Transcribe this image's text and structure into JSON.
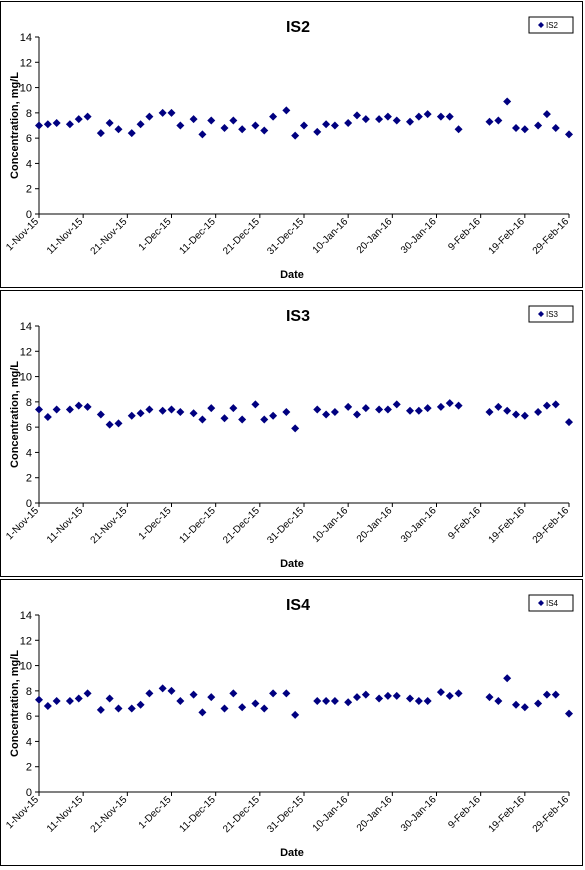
{
  "charts": [
    {
      "title": "IS2",
      "legend_label": "IS2",
      "ylabel": "Concentration, mg/L",
      "xlabel": "Date",
      "y_ticks": [
        "0",
        "2",
        "4",
        "6",
        "8",
        "10",
        "12",
        "14"
      ],
      "x_ticks": [
        "1-Nov-15",
        "11-Nov-15",
        "21-Nov-15",
        "1-Dec-15",
        "11-Dec-15",
        "21-Dec-15",
        "31-Dec-15",
        "10-Jan-16",
        "20-Jan-16",
        "30-Jan-16",
        "9-Feb-16",
        "19-Feb-16",
        "29-Feb-16"
      ]
    },
    {
      "title": "IS3",
      "legend_label": "IS3",
      "ylabel": "Concentration, mg/L",
      "xlabel": "Date",
      "y_ticks": [
        "0",
        "2",
        "4",
        "6",
        "8",
        "10",
        "12",
        "14"
      ],
      "x_ticks": [
        "1-Nov-15",
        "11-Nov-15",
        "21-Nov-15",
        "1-Dec-15",
        "11-Dec-15",
        "21-Dec-15",
        "31-Dec-15",
        "10-Jan-16",
        "20-Jan-16",
        "30-Jan-16",
        "9-Feb-16",
        "19-Feb-16",
        "29-Feb-16"
      ]
    },
    {
      "title": "IS4",
      "legend_label": "IS4",
      "ylabel": "Concentration, mg/L",
      "xlabel": "Date",
      "y_ticks": [
        "0",
        "2",
        "4",
        "6",
        "8",
        "10",
        "12",
        "14"
      ],
      "x_ticks": [
        "1-Nov-15",
        "11-Nov-15",
        "21-Nov-15",
        "1-Dec-15",
        "11-Dec-15",
        "21-Dec-15",
        "31-Dec-15",
        "10-Jan-16",
        "20-Jan-16",
        "30-Jan-16",
        "9-Feb-16",
        "19-Feb-16",
        "29-Feb-16"
      ]
    }
  ],
  "chart_data": [
    {
      "type": "scatter",
      "title": "IS2",
      "xlabel": "Date",
      "ylabel": "Concentration, mg/L",
      "x_type": "date",
      "xlim": [
        "2015-11-01",
        "2016-02-29"
      ],
      "ylim": [
        0,
        14
      ],
      "y_tick_step": 2,
      "grid": false,
      "legend": "top-right",
      "marker": "diamond",
      "color": "#000080",
      "series": [
        {
          "name": "IS2",
          "x": [
            "2015-11-01",
            "2015-11-03",
            "2015-11-05",
            "2015-11-08",
            "2015-11-10",
            "2015-11-12",
            "2015-11-15",
            "2015-11-17",
            "2015-11-19",
            "2015-11-22",
            "2015-11-24",
            "2015-11-26",
            "2015-11-29",
            "2015-12-01",
            "2015-12-03",
            "2015-12-06",
            "2015-12-08",
            "2015-12-10",
            "2015-12-13",
            "2015-12-15",
            "2015-12-17",
            "2015-12-20",
            "2015-12-22",
            "2015-12-24",
            "2015-12-27",
            "2015-12-29",
            "2015-12-31",
            "2016-01-03",
            "2016-01-05",
            "2016-01-07",
            "2016-01-10",
            "2016-01-12",
            "2016-01-14",
            "2016-01-17",
            "2016-01-19",
            "2016-01-21",
            "2016-01-24",
            "2016-01-26",
            "2016-01-28",
            "2016-01-31",
            "2016-02-02",
            "2016-02-04",
            "2016-02-11",
            "2016-02-13",
            "2016-02-15",
            "2016-02-17",
            "2016-02-19",
            "2016-02-22",
            "2016-02-24",
            "2016-02-26",
            "2016-02-29"
          ],
          "y": [
            7.0,
            7.1,
            7.2,
            7.1,
            7.5,
            7.7,
            6.4,
            7.2,
            6.7,
            6.4,
            7.1,
            7.7,
            8.0,
            8.0,
            7.0,
            7.5,
            6.3,
            7.4,
            6.8,
            7.4,
            6.7,
            7.0,
            6.6,
            7.7,
            8.2,
            6.2,
            7.0,
            6.5,
            7.1,
            7.0,
            7.2,
            7.8,
            7.5,
            7.5,
            7.7,
            7.4,
            7.3,
            7.7,
            7.9,
            7.7,
            7.7,
            6.7,
            7.3,
            7.4,
            8.9,
            6.8,
            6.7,
            7.0,
            7.9,
            6.8,
            6.3
          ]
        }
      ]
    },
    {
      "type": "scatter",
      "title": "IS3",
      "xlabel": "Date",
      "ylabel": "Concentration, mg/L",
      "x_type": "date",
      "xlim": [
        "2015-11-01",
        "2016-02-29"
      ],
      "ylim": [
        0,
        14
      ],
      "y_tick_step": 2,
      "grid": false,
      "legend": "top-right",
      "marker": "diamond",
      "color": "#000080",
      "series": [
        {
          "name": "IS3",
          "x": [
            "2015-11-01",
            "2015-11-03",
            "2015-11-05",
            "2015-11-08",
            "2015-11-10",
            "2015-11-12",
            "2015-11-15",
            "2015-11-17",
            "2015-11-19",
            "2015-11-22",
            "2015-11-24",
            "2015-11-26",
            "2015-11-29",
            "2015-12-01",
            "2015-12-03",
            "2015-12-06",
            "2015-12-08",
            "2015-12-10",
            "2015-12-13",
            "2015-12-15",
            "2015-12-17",
            "2015-12-20",
            "2015-12-22",
            "2015-12-24",
            "2015-12-27",
            "2015-12-29",
            "2016-01-03",
            "2016-01-05",
            "2016-01-07",
            "2016-01-10",
            "2016-01-12",
            "2016-01-14",
            "2016-01-17",
            "2016-01-19",
            "2016-01-21",
            "2016-01-24",
            "2016-01-26",
            "2016-01-28",
            "2016-01-31",
            "2016-02-02",
            "2016-02-04",
            "2016-02-11",
            "2016-02-13",
            "2016-02-15",
            "2016-02-17",
            "2016-02-19",
            "2016-02-22",
            "2016-02-24",
            "2016-02-26",
            "2016-02-29"
          ],
          "y": [
            7.4,
            6.8,
            7.4,
            7.4,
            7.7,
            7.6,
            7.0,
            6.2,
            6.3,
            6.9,
            7.1,
            7.4,
            7.3,
            7.4,
            7.2,
            7.1,
            6.6,
            7.5,
            6.7,
            7.5,
            6.6,
            7.8,
            6.6,
            6.9,
            7.2,
            5.9,
            7.4,
            7.0,
            7.2,
            7.6,
            7.0,
            7.5,
            7.4,
            7.4,
            7.8,
            7.3,
            7.3,
            7.5,
            7.6,
            7.9,
            7.7,
            7.2,
            7.6,
            7.3,
            7.0,
            6.9,
            7.2,
            7.7,
            7.8,
            6.4
          ]
        }
      ]
    },
    {
      "type": "scatter",
      "title": "IS4",
      "xlabel": "Date",
      "ylabel": "Concentration, mg/L",
      "x_type": "date",
      "xlim": [
        "2015-11-01",
        "2016-02-29"
      ],
      "ylim": [
        0,
        14
      ],
      "y_tick_step": 2,
      "grid": false,
      "legend": "top-right",
      "marker": "diamond",
      "color": "#000080",
      "series": [
        {
          "name": "IS4",
          "x": [
            "2015-11-01",
            "2015-11-03",
            "2015-11-05",
            "2015-11-08",
            "2015-11-10",
            "2015-11-12",
            "2015-11-15",
            "2015-11-17",
            "2015-11-19",
            "2015-11-22",
            "2015-11-24",
            "2015-11-26",
            "2015-11-29",
            "2015-12-01",
            "2015-12-03",
            "2015-12-06",
            "2015-12-08",
            "2015-12-10",
            "2015-12-13",
            "2015-12-15",
            "2015-12-17",
            "2015-12-20",
            "2015-12-22",
            "2015-12-24",
            "2015-12-27",
            "2015-12-29",
            "2016-01-03",
            "2016-01-05",
            "2016-01-07",
            "2016-01-10",
            "2016-01-12",
            "2016-01-14",
            "2016-01-17",
            "2016-01-19",
            "2016-01-21",
            "2016-01-24",
            "2016-01-26",
            "2016-01-28",
            "2016-01-31",
            "2016-02-02",
            "2016-02-04",
            "2016-02-11",
            "2016-02-13",
            "2016-02-15",
            "2016-02-17",
            "2016-02-19",
            "2016-02-22",
            "2016-02-24",
            "2016-02-26",
            "2016-02-29"
          ],
          "y": [
            7.3,
            6.8,
            7.2,
            7.2,
            7.4,
            7.8,
            6.5,
            7.4,
            6.6,
            6.6,
            6.9,
            7.8,
            8.2,
            8.0,
            7.2,
            7.7,
            6.3,
            7.5,
            6.6,
            7.8,
            6.7,
            7.0,
            6.6,
            7.8,
            7.8,
            6.1,
            7.2,
            7.2,
            7.2,
            7.1,
            7.5,
            7.7,
            7.4,
            7.6,
            7.6,
            7.4,
            7.2,
            7.2,
            7.9,
            7.6,
            7.8,
            7.5,
            7.2,
            9.0,
            6.9,
            6.7,
            7.0,
            7.7,
            7.7,
            6.2
          ]
        }
      ]
    }
  ]
}
